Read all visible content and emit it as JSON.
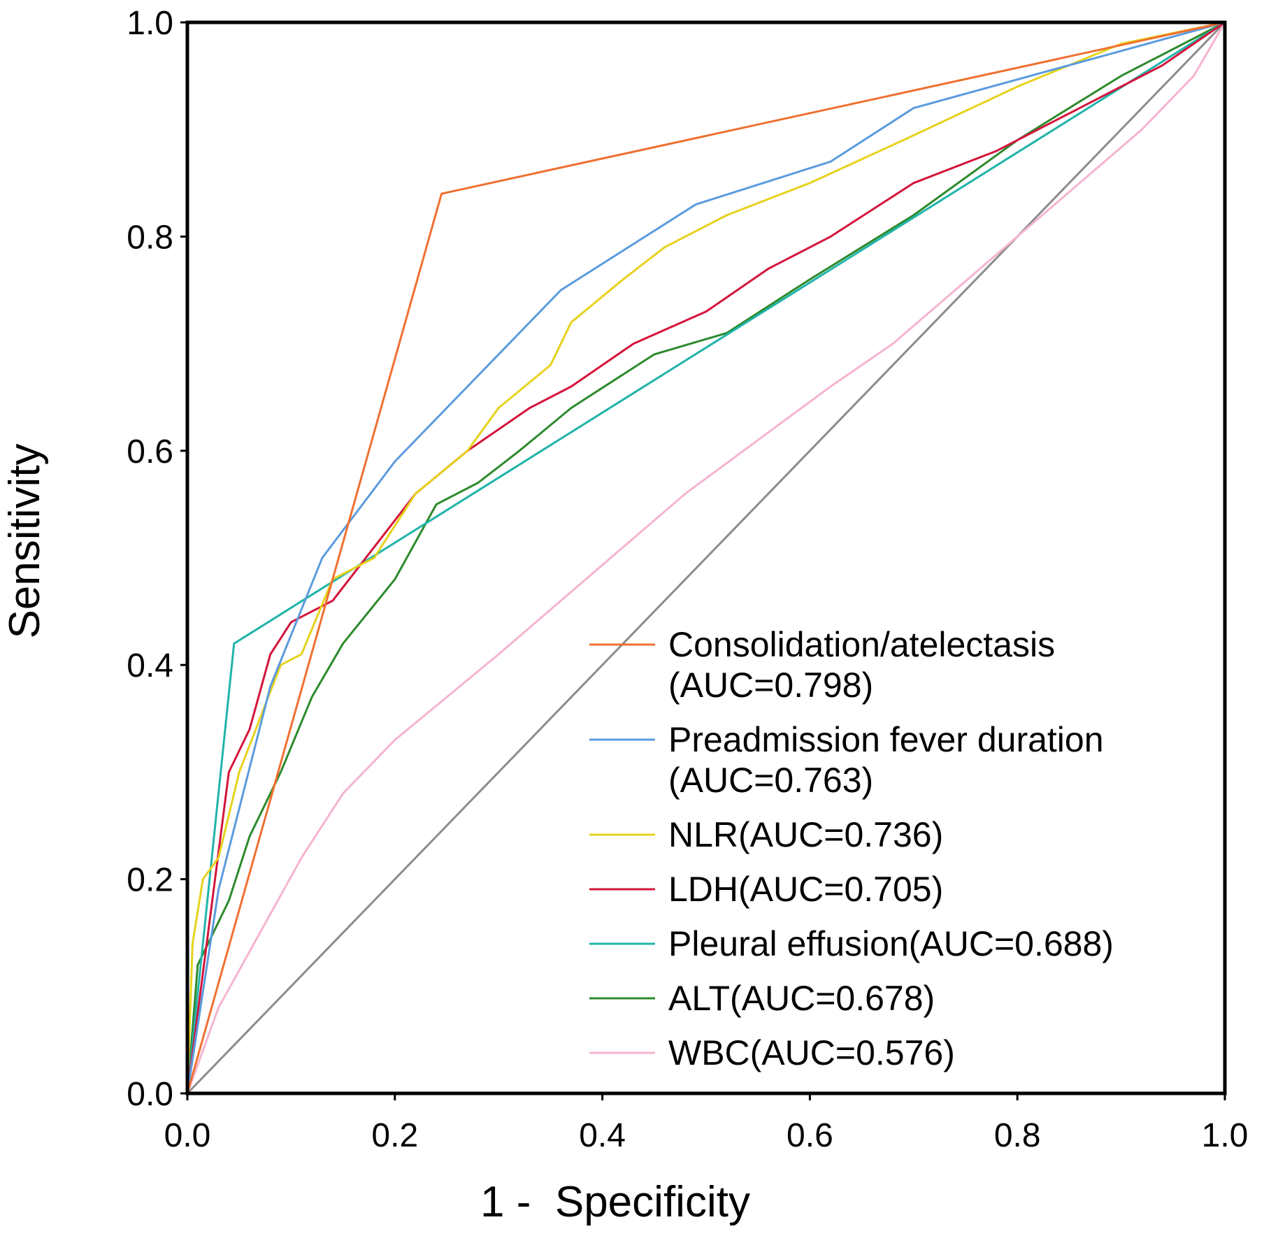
{
  "chart_data": {
    "type": "line",
    "title": "",
    "xlabel": "1 -  Specificity",
    "ylabel": "Sensitivity",
    "xlim": [
      0,
      1
    ],
    "ylim": [
      0,
      1
    ],
    "xticks": [
      "0.0",
      "0.2",
      "0.4",
      "0.6",
      "0.8",
      "1.0"
    ],
    "yticks": [
      "0.0",
      "0.2",
      "0.4",
      "0.6",
      "0.8",
      "1.0"
    ],
    "legend_position": "bottom-right",
    "reference_line": {
      "name": "diagonal",
      "color": "#8c8c8c",
      "points": [
        [
          0,
          0
        ],
        [
          1,
          1
        ]
      ]
    },
    "series": [
      {
        "name": "Consolidation/atelectasis",
        "legend_lines": [
          "Consolidation/atelectasis",
          "(AUC=0.798)"
        ],
        "auc": 0.798,
        "color": "#f07030",
        "points": [
          [
            0,
            0
          ],
          [
            0.245,
            0.84
          ],
          [
            1,
            1
          ]
        ]
      },
      {
        "name": "Preadmission fever duration",
        "legend_lines": [
          "Preadmission fever duration",
          "(AUC=0.763)"
        ],
        "auc": 0.763,
        "color": "#5b9bde",
        "points": [
          [
            0,
            0
          ],
          [
            0.03,
            0.19
          ],
          [
            0.08,
            0.38
          ],
          [
            0.13,
            0.5
          ],
          [
            0.2,
            0.59
          ],
          [
            0.36,
            0.75
          ],
          [
            0.49,
            0.83
          ],
          [
            0.62,
            0.87
          ],
          [
            0.7,
            0.92
          ],
          [
            0.85,
            0.96
          ],
          [
            1,
            1
          ]
        ]
      },
      {
        "name": "NLR",
        "legend_lines": [
          "NLR(AUC=0.736)"
        ],
        "auc": 0.736,
        "color": "#e6d21e",
        "points": [
          [
            0,
            0
          ],
          [
            0.005,
            0.14
          ],
          [
            0.015,
            0.2
          ],
          [
            0.03,
            0.22
          ],
          [
            0.05,
            0.3
          ],
          [
            0.07,
            0.35
          ],
          [
            0.09,
            0.4
          ],
          [
            0.11,
            0.41
          ],
          [
            0.14,
            0.48
          ],
          [
            0.18,
            0.5
          ],
          [
            0.22,
            0.56
          ],
          [
            0.27,
            0.6
          ],
          [
            0.3,
            0.64
          ],
          [
            0.35,
            0.68
          ],
          [
            0.37,
            0.72
          ],
          [
            0.42,
            0.76
          ],
          [
            0.46,
            0.79
          ],
          [
            0.52,
            0.82
          ],
          [
            0.6,
            0.85
          ],
          [
            0.69,
            0.89
          ],
          [
            0.8,
            0.94
          ],
          [
            0.9,
            0.98
          ],
          [
            1,
            1
          ]
        ]
      },
      {
        "name": "LDH",
        "legend_lines": [
          "LDH(AUC=0.705)"
        ],
        "auc": 0.705,
        "color": "#d4143c",
        "points": [
          [
            0,
            0
          ],
          [
            0.02,
            0.15
          ],
          [
            0.04,
            0.3
          ],
          [
            0.06,
            0.34
          ],
          [
            0.08,
            0.41
          ],
          [
            0.1,
            0.44
          ],
          [
            0.14,
            0.46
          ],
          [
            0.18,
            0.51
          ],
          [
            0.22,
            0.56
          ],
          [
            0.27,
            0.6
          ],
          [
            0.33,
            0.64
          ],
          [
            0.37,
            0.66
          ],
          [
            0.43,
            0.7
          ],
          [
            0.5,
            0.73
          ],
          [
            0.56,
            0.77
          ],
          [
            0.62,
            0.8
          ],
          [
            0.7,
            0.85
          ],
          [
            0.78,
            0.88
          ],
          [
            0.86,
            0.92
          ],
          [
            0.94,
            0.96
          ],
          [
            1,
            1
          ]
        ]
      },
      {
        "name": "Pleural effusion",
        "legend_lines": [
          "Pleural effusion(AUC=0.688)"
        ],
        "auc": 0.688,
        "color": "#21b4aa",
        "points": [
          [
            0,
            0
          ],
          [
            0.045,
            0.42
          ],
          [
            1,
            1
          ]
        ]
      },
      {
        "name": "ALT",
        "legend_lines": [
          "ALT(AUC=0.678)"
        ],
        "auc": 0.678,
        "color": "#2d8a2d",
        "points": [
          [
            0,
            0
          ],
          [
            0.01,
            0.12
          ],
          [
            0.04,
            0.18
          ],
          [
            0.06,
            0.24
          ],
          [
            0.09,
            0.3
          ],
          [
            0.12,
            0.37
          ],
          [
            0.15,
            0.42
          ],
          [
            0.2,
            0.48
          ],
          [
            0.24,
            0.55
          ],
          [
            0.28,
            0.57
          ],
          [
            0.32,
            0.6
          ],
          [
            0.37,
            0.64
          ],
          [
            0.45,
            0.69
          ],
          [
            0.52,
            0.71
          ],
          [
            0.6,
            0.76
          ],
          [
            0.7,
            0.82
          ],
          [
            0.8,
            0.89
          ],
          [
            0.9,
            0.95
          ],
          [
            1,
            1
          ]
        ]
      },
      {
        "name": "WBC",
        "legend_lines": [
          "WBC(AUC=0.576)"
        ],
        "auc": 0.576,
        "color": "#f5b4d2",
        "points": [
          [
            0,
            0
          ],
          [
            0.03,
            0.08
          ],
          [
            0.07,
            0.15
          ],
          [
            0.11,
            0.22
          ],
          [
            0.15,
            0.28
          ],
          [
            0.2,
            0.33
          ],
          [
            0.25,
            0.37
          ],
          [
            0.3,
            0.41
          ],
          [
            0.36,
            0.46
          ],
          [
            0.42,
            0.51
          ],
          [
            0.48,
            0.56
          ],
          [
            0.55,
            0.61
          ],
          [
            0.62,
            0.66
          ],
          [
            0.68,
            0.7
          ],
          [
            0.74,
            0.75
          ],
          [
            0.8,
            0.8
          ],
          [
            0.86,
            0.85
          ],
          [
            0.92,
            0.9
          ],
          [
            0.97,
            0.95
          ],
          [
            1,
            1
          ]
        ]
      }
    ]
  }
}
